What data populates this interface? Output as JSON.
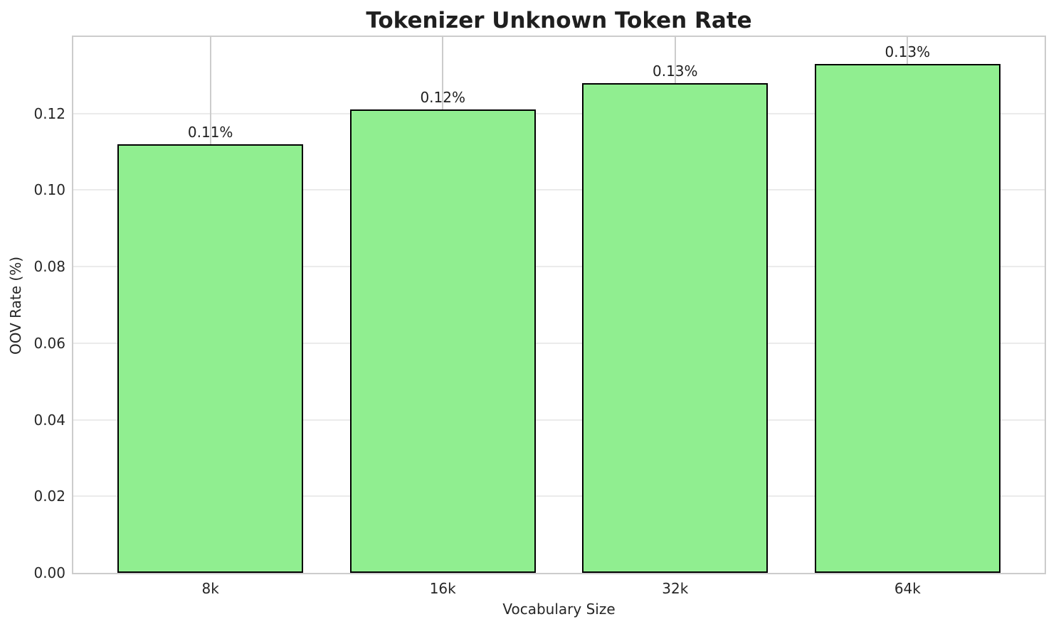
{
  "chart_data": {
    "type": "bar",
    "title": "Tokenizer Unknown Token Rate",
    "xlabel": "Vocabulary Size",
    "ylabel": "OOV Rate (%)",
    "categories": [
      "8k",
      "16k",
      "32k",
      "64k"
    ],
    "values": [
      0.112,
      0.121,
      0.128,
      0.133
    ],
    "bar_labels": [
      "0.11%",
      "0.12%",
      "0.13%",
      "0.13%"
    ],
    "yticks": [
      "0.00",
      "0.02",
      "0.04",
      "0.06",
      "0.08",
      "0.10",
      "0.12"
    ],
    "ylim": [
      0,
      0.14
    ],
    "grid": "both",
    "legend": "none",
    "colors": {
      "bar_fill": "#90ee90",
      "bar_edge": "#000000",
      "spine": "#cccccc",
      "grid_vertical": "#cccccc",
      "grid_horizontal": "#ebebeb",
      "text": "#262626",
      "background": "#ffffff"
    }
  }
}
